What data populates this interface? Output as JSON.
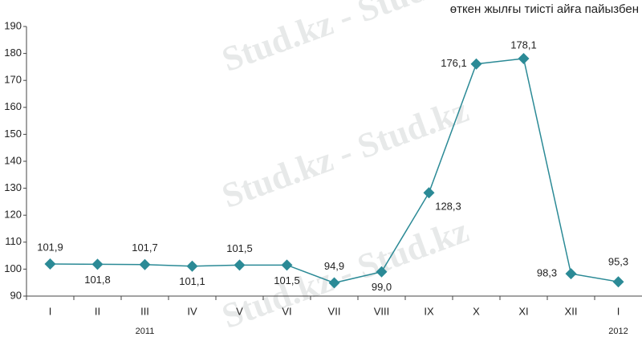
{
  "chart_data": {
    "type": "line",
    "title": "өткен жылғы тиісті айға пайызбен",
    "watermark": "Stud.kz - Stud.kz",
    "categories": [
      "I",
      "II",
      "III",
      "IV",
      "V",
      "VI",
      "VII",
      "VIII",
      "IX",
      "X",
      "XI",
      "XII",
      "I"
    ],
    "years": [
      "2011",
      "2012"
    ],
    "values": [
      101.9,
      101.8,
      101.7,
      101.1,
      101.5,
      101.5,
      94.9,
      99.0,
      128.3,
      176.1,
      178.1,
      98.3,
      95.3
    ],
    "value_labels": [
      "101,9",
      "101,8",
      "101,7",
      "101,1",
      "101,5",
      "101,5",
      "94,9",
      "99,0",
      "128,3",
      "176,1",
      "178,1",
      "98,3",
      "95,3"
    ],
    "color": "#2b8a96",
    "ylim": [
      90,
      190
    ],
    "yticks": [
      90,
      100,
      110,
      120,
      130,
      140,
      150,
      160,
      170,
      180,
      190
    ]
  }
}
